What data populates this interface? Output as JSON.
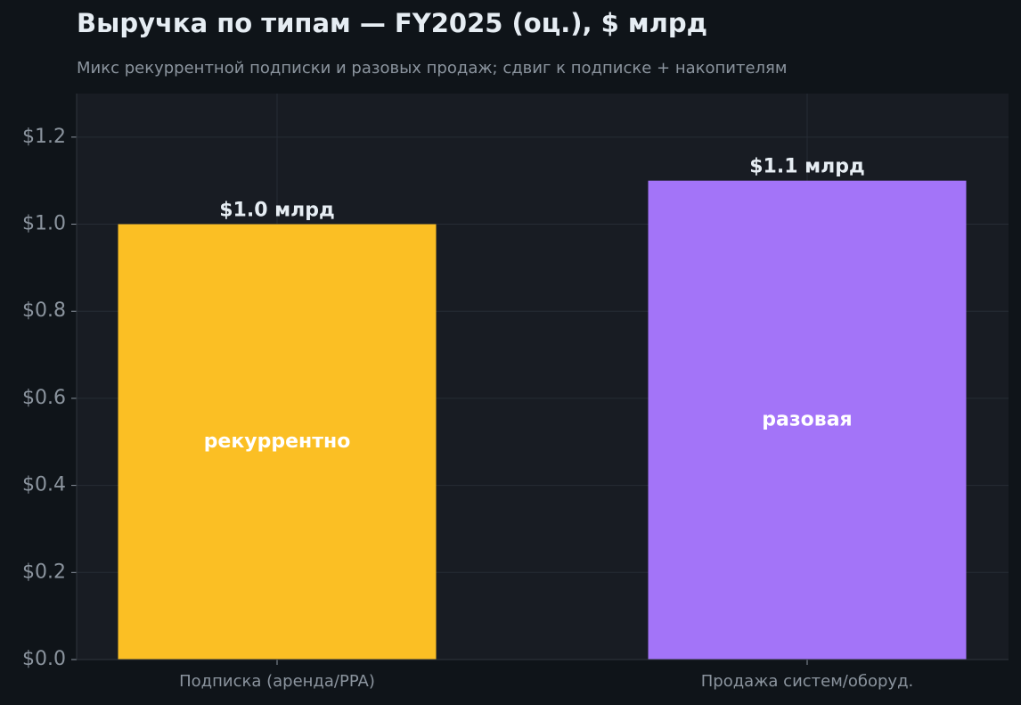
{
  "chart_data": {
    "type": "bar",
    "title": "Выручка по типам — FY2025 (оц.), $ млрд",
    "subtitle": "Микс рекуррентной подписки и разовых продаж; сдвиг к подписке + накопителям",
    "categories": [
      "Подписка (аренда/PPA)",
      "Продажа систем/оборуд."
    ],
    "values": [
      1.0,
      1.1
    ],
    "value_labels": [
      "$1.0 млрд",
      "$1.1 млрд"
    ],
    "bar_labels": [
      "рекуррентно",
      "разовая"
    ],
    "colors": [
      "#fbbf24",
      "#a374f8"
    ],
    "ylim": [
      0,
      1.3
    ],
    "yticks": [
      {
        "value": 0,
        "label": "$0.0"
      },
      {
        "value": 0.2,
        "label": "$0.2"
      },
      {
        "value": 0.4,
        "label": "$0.4"
      },
      {
        "value": 0.6,
        "label": "$0.6"
      },
      {
        "value": 0.8,
        "label": "$0.8"
      },
      {
        "value": 1.0,
        "label": "$1.0"
      },
      {
        "value": 1.2,
        "label": "$1.2"
      }
    ],
    "grid": true
  }
}
